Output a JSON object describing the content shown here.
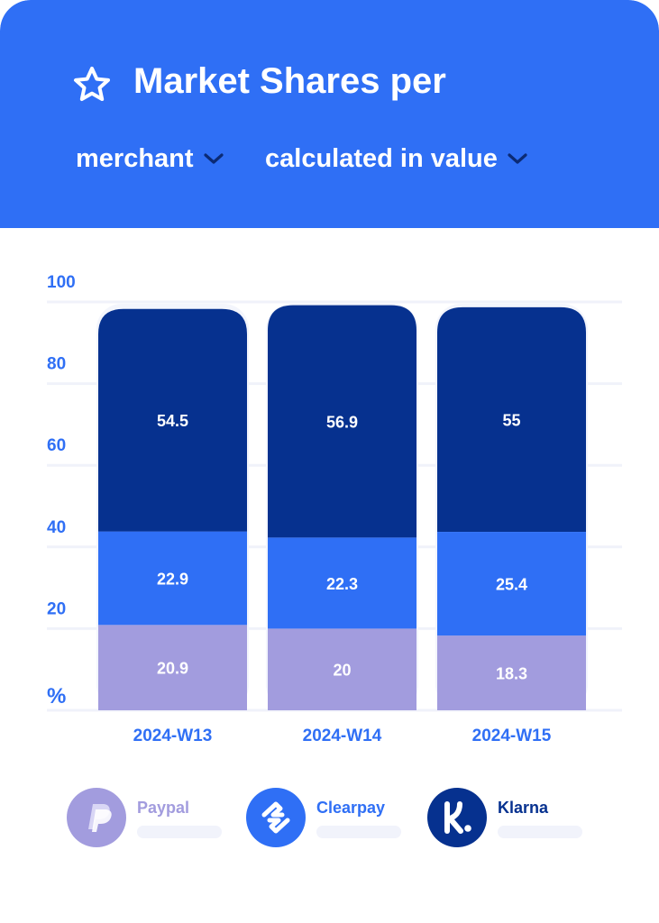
{
  "header": {
    "title": "Market Shares per",
    "selector_1": "merchant",
    "selector_2": "calculated in value"
  },
  "colors": {
    "header_bg": "#2f6ff5",
    "axis_label": "#2f6ff5",
    "klarna": "#06318f",
    "clearpay": "#2f6ff5",
    "paypal": "#a29cde",
    "bar_track": "#f3f5fc"
  },
  "icons": {
    "title": "star-icon",
    "dropdown": "chevron-down-icon",
    "paypal": "paypal-logo-icon",
    "clearpay": "clearpay-arrows-icon",
    "klarna": "klarna-k-icon"
  },
  "chart_data": {
    "type": "bar",
    "stacked": true,
    "categories": [
      "2024-W13",
      "2024-W14",
      "2024-W15"
    ],
    "series": [
      {
        "name": "Paypal",
        "values": [
          20.9,
          20,
          18.3
        ]
      },
      {
        "name": "Clearpay",
        "values": [
          22.9,
          22.3,
          25.4
        ]
      },
      {
        "name": "Klarna",
        "values": [
          54.5,
          56.9,
          55
        ]
      }
    ],
    "yticks": [
      "100",
      "80",
      "60",
      "40",
      "20",
      "%"
    ],
    "ylim": [
      0,
      100
    ],
    "grid": true,
    "legend_position": "bottom"
  },
  "legend": [
    {
      "label": "Paypal",
      "color": "#a29cde",
      "text_color": "#a29cde"
    },
    {
      "label": "Clearpay",
      "color": "#2f6ff5",
      "text_color": "#2f6ff5"
    },
    {
      "label": "Klarna",
      "color": "#06318f",
      "text_color": "#06318f"
    }
  ]
}
